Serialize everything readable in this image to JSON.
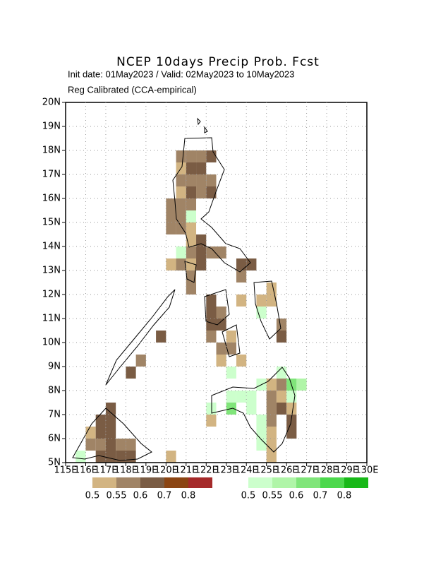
{
  "title": "NCEP 10days Precip Prob. Fcst",
  "subtitle": "Init date: 01May2023 / Valid: 02May2023 to 10May2023",
  "method": "Reg Calibrated (CCA-empirical)",
  "lonlim": [
    115,
    130
  ],
  "latlim": [
    5,
    20
  ],
  "lonticks": [
    {
      "value": 115,
      "label": "115E"
    },
    {
      "value": 116,
      "label": "116E"
    },
    {
      "value": 117,
      "label": "117E"
    },
    {
      "value": 118,
      "label": "118E"
    },
    {
      "value": 119,
      "label": "119E"
    },
    {
      "value": 120,
      "label": "120E"
    },
    {
      "value": 121,
      "label": "121E"
    },
    {
      "value": 122,
      "label": "122E"
    },
    {
      "value": 123,
      "label": "123E"
    },
    {
      "value": 124,
      "label": "124E"
    },
    {
      "value": 125,
      "label": "125E"
    },
    {
      "value": 126,
      "label": "126E"
    },
    {
      "value": 127,
      "label": "127E"
    },
    {
      "value": 128,
      "label": "128E"
    },
    {
      "value": 129,
      "label": "129E"
    },
    {
      "value": 130,
      "label": "130E"
    }
  ],
  "latticks": [
    {
      "value": 5,
      "label": "5N"
    },
    {
      "value": 6,
      "label": "6N"
    },
    {
      "value": 7,
      "label": "7N"
    },
    {
      "value": 8,
      "label": "8N"
    },
    {
      "value": 9,
      "label": "9N"
    },
    {
      "value": 10,
      "label": "10N"
    },
    {
      "value": 11,
      "label": "11N"
    },
    {
      "value": 12,
      "label": "12N"
    },
    {
      "value": 13,
      "label": "13N"
    },
    {
      "value": 14,
      "label": "14N"
    },
    {
      "value": 15,
      "label": "15N"
    },
    {
      "value": 16,
      "label": "16N"
    },
    {
      "value": 17,
      "label": "17N"
    },
    {
      "value": 18,
      "label": "18N"
    },
    {
      "value": 19,
      "label": "19N"
    },
    {
      "value": 20,
      "label": "20N"
    }
  ],
  "cell_size": 0.5,
  "dry_levels": [
    {
      "value": 0.5,
      "label": "0.5",
      "color": "#d2b482"
    },
    {
      "value": 0.55,
      "label": "0.55",
      "color": "#a08466"
    },
    {
      "value": 0.6,
      "label": "0.6",
      "color": "#7a5c44"
    },
    {
      "value": 0.7,
      "label": "0.7",
      "color": "#8b4513"
    },
    {
      "value": 0.8,
      "label": "0.8",
      "color": "#a52a2a"
    }
  ],
  "wet_levels": [
    {
      "value": 0.5,
      "label": "0.5",
      "color": "#ccffcc"
    },
    {
      "value": 0.55,
      "label": "0.55",
      "color": "#b0f5a8"
    },
    {
      "value": 0.6,
      "label": "0.6",
      "color": "#80e57a"
    },
    {
      "value": 0.7,
      "label": "0.7",
      "color": "#4cd84c"
    },
    {
      "value": 0.8,
      "label": "0.8",
      "color": "#18b818"
    }
  ],
  "dry_cells": [
    [
      120.5,
      17.5,
      0.55
    ],
    [
      121,
      17.5,
      0.55
    ],
    [
      121.5,
      17.5,
      0.55
    ],
    [
      122,
      17.5,
      0.6
    ],
    [
      120.5,
      17,
      0.5
    ],
    [
      121,
      17,
      0.6
    ],
    [
      121.5,
      17,
      0.6
    ],
    [
      120.5,
      16.5,
      0.55
    ],
    [
      121,
      16.5,
      0.55
    ],
    [
      121.5,
      16.5,
      0.55
    ],
    [
      122,
      16.5,
      0.55
    ],
    [
      120.5,
      16,
      0.5
    ],
    [
      121,
      16,
      0.6
    ],
    [
      121.5,
      16,
      0.55
    ],
    [
      122,
      16,
      0.6
    ],
    [
      120,
      15.5,
      0.55
    ],
    [
      120.5,
      15.5,
      0.55
    ],
    [
      121,
      15.5,
      0.55
    ],
    [
      120,
      15,
      0.55
    ],
    [
      120.5,
      15,
      0.55
    ],
    [
      120,
      14.5,
      0.55
    ],
    [
      120.5,
      14.5,
      0.55
    ],
    [
      121,
      14.5,
      0.5
    ],
    [
      121,
      14,
      0.5
    ],
    [
      121.5,
      14,
      0.6
    ],
    [
      121,
      13.5,
      0.55
    ],
    [
      121.5,
      13.5,
      0.6
    ],
    [
      122,
      13.5,
      0.55
    ],
    [
      122.5,
      13.5,
      0.55
    ],
    [
      120,
      13,
      0.5
    ],
    [
      120.5,
      13,
      0.55
    ],
    [
      121,
      13,
      0.5
    ],
    [
      121.5,
      13,
      0.6
    ],
    [
      123.5,
      13,
      0.6
    ],
    [
      124,
      13,
      0.6
    ],
    [
      121,
      12.5,
      0.55
    ],
    [
      123.5,
      12.5,
      0.55
    ],
    [
      121,
      12,
      0.55
    ],
    [
      125,
      12,
      0.5
    ],
    [
      123.5,
      11.5,
      0.5
    ],
    [
      124.5,
      11.5,
      0.5
    ],
    [
      125,
      11.5,
      0.5
    ],
    [
      122,
      11.5,
      0.6
    ],
    [
      122,
      11,
      0.6
    ],
    [
      122.5,
      11,
      0.55
    ],
    [
      122,
      10.5,
      0.6
    ],
    [
      122.5,
      10.5,
      0.6
    ],
    [
      125.5,
      10.5,
      0.55
    ],
    [
      122,
      10,
      0.55
    ],
    [
      123,
      10,
      0.5
    ],
    [
      125.5,
      10,
      0.6
    ],
    [
      122.5,
      9.5,
      0.55
    ],
    [
      123,
      9.5,
      0.55
    ],
    [
      122.5,
      9,
      0.5
    ],
    [
      123.5,
      9,
      0.5
    ],
    [
      119.5,
      10,
      0.6
    ],
    [
      118.5,
      9,
      0.55
    ],
    [
      118,
      8.5,
      0.6
    ],
    [
      125,
      8,
      0.5
    ],
    [
      125.5,
      8,
      0.55
    ],
    [
      125,
      7.5,
      0.55
    ],
    [
      125.5,
      7.5,
      0.5
    ],
    [
      125,
      7,
      0.55
    ],
    [
      125.5,
      7,
      0.6
    ],
    [
      126,
      7,
      0.5
    ],
    [
      122,
      6.5,
      0.5
    ],
    [
      125,
      6.5,
      0.55
    ],
    [
      126,
      6.5,
      0.6
    ],
    [
      125,
      6,
      0.5
    ],
    [
      126,
      6,
      0.6
    ],
    [
      125,
      5.5,
      0.5
    ],
    [
      125,
      5,
      0.5
    ],
    [
      117,
      7,
      0.6
    ],
    [
      116.5,
      6.5,
      0.6
    ],
    [
      117,
      6.5,
      0.6
    ],
    [
      116,
      6,
      0.5
    ],
    [
      116.5,
      6,
      0.6
    ],
    [
      117,
      6,
      0.6
    ],
    [
      116,
      5.5,
      0.55
    ],
    [
      116.5,
      5.5,
      0.55
    ],
    [
      117,
      5.5,
      0.6
    ],
    [
      117.5,
      5.5,
      0.55
    ],
    [
      118,
      5.5,
      0.55
    ],
    [
      116.5,
      5,
      0.6
    ],
    [
      117,
      5,
      0.6
    ],
    [
      117.5,
      5,
      0.6
    ],
    [
      118,
      5,
      0.6
    ],
    [
      120,
      5,
      0.5
    ]
  ],
  "wet_cells": [
    [
      121,
      15,
      0.5
    ],
    [
      120.5,
      13.5,
      0.5
    ],
    [
      124.5,
      11,
      0.5
    ],
    [
      125.5,
      8.5,
      0.5
    ],
    [
      123,
      8.5,
      0.5
    ],
    [
      124.5,
      8,
      0.5
    ],
    [
      126,
      8,
      0.6
    ],
    [
      126.5,
      8,
      0.55
    ],
    [
      123,
      7.5,
      0.5
    ],
    [
      123.5,
      7.5,
      0.5
    ],
    [
      124,
      7.5,
      0.5
    ],
    [
      126,
      7.5,
      0.5
    ],
    [
      122,
      7,
      0.5
    ],
    [
      123,
      7,
      0.6
    ],
    [
      124,
      7,
      0.5
    ],
    [
      124.5,
      6.5,
      0.5
    ],
    [
      124.5,
      6,
      0.5
    ],
    [
      124.5,
      5.5,
      0.5
    ],
    [
      115.5,
      5,
      0.5
    ]
  ]
}
